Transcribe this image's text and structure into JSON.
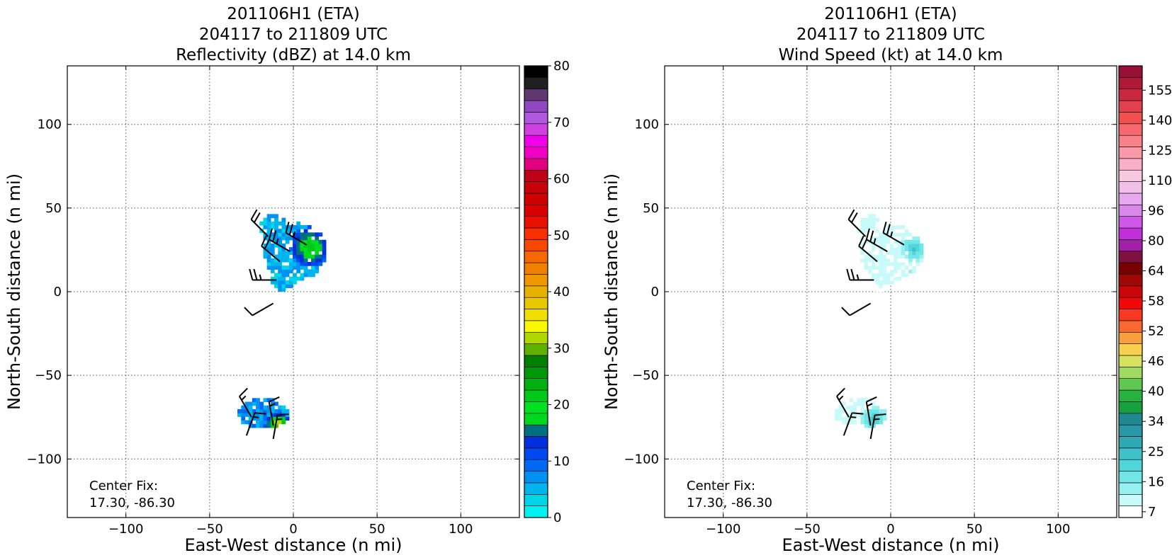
{
  "chart_data": [
    {
      "type": "heatmap",
      "title": [
        "201106H1 (ETA)",
        "204117 to 211809 UTC",
        "Reflectivity (dBZ) at 14.0 km"
      ],
      "xlabel": "East-West distance (n mi)",
      "ylabel": "North-South distance (n mi)",
      "xlim": [
        -135,
        135
      ],
      "ylim": [
        -135,
        135
      ],
      "xticks": [
        -100,
        -50,
        0,
        50,
        100
      ],
      "yticks": [
        -100,
        -50,
        0,
        50,
        100
      ],
      "grid": true,
      "annotation": [
        "Center Fix:",
        "17.30, -86.30"
      ],
      "colorbar": {
        "range": [
          0,
          80
        ],
        "tick_labels": [
          "0",
          "10",
          "20",
          "30",
          "40",
          "50",
          "60",
          "70",
          "80"
        ],
        "colors": [
          "#00f2f2",
          "#00d5e8",
          "#00b5ee",
          "#0092f2",
          "#0068f2",
          "#0048f0",
          "#0030de",
          "#007080",
          "#00d820",
          "#00e020",
          "#00c818",
          "#00b010",
          "#009808",
          "#008000",
          "#60b000",
          "#b0d800",
          "#f8f800",
          "#f0e000",
          "#e8c800",
          "#e8b000",
          "#f09800",
          "#f08000",
          "#f86800",
          "#f84800",
          "#f83000",
          "#e81000",
          "#d80000",
          "#d00000",
          "#c80008",
          "#c00018",
          "#e00080",
          "#f000c0",
          "#f000e8",
          "#d040e0",
          "#b058e0",
          "#9048c0",
          "#603870",
          "#202020",
          "#000000"
        ]
      },
      "regions": [
        {
          "name": "upper echo",
          "center": [
            3,
            23
          ],
          "max_dbz": 22
        },
        {
          "name": "lower echo",
          "center": [
            -17,
            -76
          ],
          "max_dbz": 32
        }
      ],
      "barbs": [
        {
          "x": -15,
          "y": 33,
          "speed_kt": 20,
          "dir_deg": 315
        },
        {
          "x": -2,
          "y": 24,
          "speed_kt": 25,
          "dir_deg": 300
        },
        {
          "x": -8,
          "y": 18,
          "speed_kt": 20,
          "dir_deg": 310
        },
        {
          "x": 8,
          "y": 28,
          "speed_kt": 25,
          "dir_deg": 300
        },
        {
          "x": -10,
          "y": 7,
          "speed_kt": 25,
          "dir_deg": 270
        },
        {
          "x": -12,
          "y": -7,
          "speed_kt": 10,
          "dir_deg": 240
        },
        {
          "x": -25,
          "y": -75,
          "speed_kt": 15,
          "dir_deg": 330
        },
        {
          "x": -12,
          "y": -80,
          "speed_kt": 15,
          "dir_deg": 350
        },
        {
          "x": -28,
          "y": -86,
          "speed_kt": 15,
          "dir_deg": 20
        },
        {
          "x": -12,
          "y": -88,
          "speed_kt": 15,
          "dir_deg": 10
        }
      ]
    },
    {
      "type": "heatmap",
      "title": [
        "201106H1 (ETA)",
        "204117 to 211809 UTC",
        "Wind Speed (kt) at 14.0 km"
      ],
      "xlabel": "East-West distance (n mi)",
      "ylabel": "North-South distance (n mi)",
      "xlim": [
        -135,
        135
      ],
      "ylim": [
        -135,
        135
      ],
      "xticks": [
        -100,
        -50,
        0,
        50,
        100
      ],
      "yticks": [
        -100,
        -50,
        0,
        50,
        100
      ],
      "grid": true,
      "annotation": [
        "Center Fix:",
        "17.30, -86.30"
      ],
      "colorbar": {
        "range": [
          7,
          162
        ],
        "tick_labels": [
          "7",
          "16",
          "25",
          "34",
          "40",
          "46",
          "52",
          "58",
          "64",
          "80",
          "96",
          "110",
          "125",
          "140",
          "155"
        ],
        "colors": [
          "#ffffff",
          "#c8fafa",
          "#96f0f0",
          "#70e6e6",
          "#50d6da",
          "#40c0c8",
          "#30a8b4",
          "#2898a8",
          "#208890",
          "#18a040",
          "#28b040",
          "#60c850",
          "#a0d860",
          "#d8e060",
          "#f8d050",
          "#f8a040",
          "#f86830",
          "#f83820",
          "#f00808",
          "#c80808",
          "#a00808",
          "#780000",
          "#801040",
          "#a020a8",
          "#c030d8",
          "#d058e8",
          "#d888e8",
          "#e8a8f0",
          "#f0c0e8",
          "#f8c8e0",
          "#f8b0c8",
          "#f898a8",
          "#f88088",
          "#f86870",
          "#f05050",
          "#e04050",
          "#c82840",
          "#b01838",
          "#981038"
        ]
      },
      "regions": [
        {
          "name": "upper wind field",
          "center": [
            3,
            23
          ],
          "max_kt": 28
        },
        {
          "name": "lower wind field",
          "center": [
            -17,
            -76
          ],
          "max_kt": 28
        }
      ],
      "barbs": [
        {
          "x": -15,
          "y": 33,
          "speed_kt": 20,
          "dir_deg": 315
        },
        {
          "x": -2,
          "y": 24,
          "speed_kt": 25,
          "dir_deg": 300
        },
        {
          "x": -8,
          "y": 18,
          "speed_kt": 20,
          "dir_deg": 310
        },
        {
          "x": 8,
          "y": 28,
          "speed_kt": 25,
          "dir_deg": 300
        },
        {
          "x": -10,
          "y": 7,
          "speed_kt": 25,
          "dir_deg": 270
        },
        {
          "x": -12,
          "y": -7,
          "speed_kt": 10,
          "dir_deg": 240
        },
        {
          "x": -25,
          "y": -75,
          "speed_kt": 15,
          "dir_deg": 330
        },
        {
          "x": -12,
          "y": -80,
          "speed_kt": 15,
          "dir_deg": 350
        },
        {
          "x": -28,
          "y": -86,
          "speed_kt": 15,
          "dir_deg": 20
        },
        {
          "x": -12,
          "y": -88,
          "speed_kt": 15,
          "dir_deg": 10
        }
      ]
    }
  ]
}
